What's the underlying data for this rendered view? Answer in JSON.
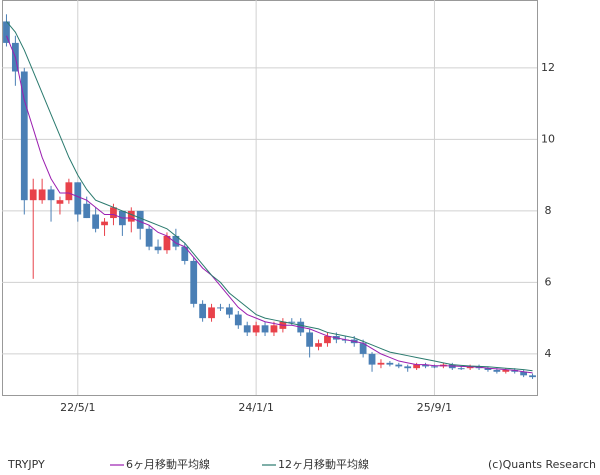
{
  "chart_data": {
    "type": "candlestick",
    "title": "TRYJPY",
    "credit": "(c)Quants Research",
    "categories": [
      null,
      null,
      null,
      null,
      null,
      null,
      null,
      null,
      "22/5/1",
      null,
      null,
      null,
      null,
      null,
      null,
      null,
      null,
      null,
      null,
      null,
      null,
      null,
      null,
      null,
      null,
      null,
      null,
      null,
      "24/1/1",
      null,
      null,
      null,
      null,
      null,
      null,
      null,
      null,
      null,
      null,
      null,
      null,
      null,
      null,
      null,
      null,
      null,
      null,
      null,
      "25/9/1",
      null,
      null,
      null,
      null,
      null,
      null,
      null,
      null,
      null,
      null,
      null
    ],
    "up_color": "#e8414a",
    "down_color": "#4a7fb5",
    "open": [
      13.3,
      12.7,
      11.9,
      8.3,
      8.3,
      8.6,
      8.2,
      8.3,
      8.8,
      8.2,
      7.9,
      7.6,
      7.8,
      8.0,
      7.7,
      8.0,
      7.5,
      7.0,
      6.9,
      7.3,
      7.0,
      6.6,
      5.4,
      5.0,
      5.3,
      5.3,
      5.1,
      4.8,
      4.6,
      4.8,
      4.6,
      4.7,
      4.9,
      4.9,
      4.6,
      4.2,
      4.3,
      4.5,
      4.4,
      4.4,
      4.3,
      4.0,
      3.7,
      3.75,
      3.7,
      3.65,
      3.6,
      3.7,
      3.65,
      3.65,
      3.7,
      3.6,
      3.6,
      3.65,
      3.6,
      3.55,
      3.5,
      3.55,
      3.5,
      3.4
    ],
    "high": [
      13.5,
      12.9,
      12.0,
      8.9,
      8.9,
      8.7,
      8.4,
      8.9,
      8.8,
      8.4,
      8.1,
      7.8,
      8.2,
      8.0,
      8.1,
      8.0,
      7.6,
      7.2,
      7.4,
      7.5,
      7.1,
      6.7,
      5.5,
      5.4,
      5.4,
      5.4,
      5.2,
      4.9,
      4.9,
      4.9,
      4.9,
      5.0,
      5.0,
      5.0,
      4.7,
      4.4,
      4.6,
      4.6,
      4.5,
      4.5,
      4.4,
      4.05,
      3.85,
      3.8,
      3.75,
      3.7,
      3.75,
      3.75,
      3.7,
      3.75,
      3.75,
      3.65,
      3.7,
      3.7,
      3.65,
      3.6,
      3.6,
      3.6,
      3.55,
      3.45
    ],
    "low": [
      12.6,
      11.5,
      7.9,
      6.1,
      8.2,
      7.7,
      7.9,
      8.2,
      7.7,
      7.8,
      7.4,
      7.3,
      7.6,
      7.3,
      7.4,
      7.2,
      6.9,
      6.8,
      6.8,
      6.9,
      6.5,
      5.3,
      4.9,
      4.9,
      5.2,
      5.0,
      4.7,
      4.5,
      4.5,
      4.5,
      4.5,
      4.6,
      4.8,
      4.5,
      3.9,
      4.1,
      4.2,
      4.3,
      4.3,
      4.2,
      3.9,
      3.5,
      3.6,
      3.65,
      3.6,
      3.5,
      3.55,
      3.6,
      3.6,
      3.6,
      3.55,
      3.55,
      3.55,
      3.55,
      3.5,
      3.45,
      3.45,
      3.45,
      3.35,
      3.3
    ],
    "close": [
      12.7,
      11.9,
      8.3,
      8.6,
      8.6,
      8.3,
      8.3,
      8.8,
      7.9,
      7.8,
      7.5,
      7.7,
      8.1,
      7.6,
      8.0,
      7.5,
      7.0,
      6.9,
      7.3,
      7.0,
      6.6,
      5.4,
      5.0,
      5.3,
      5.3,
      5.1,
      4.8,
      4.6,
      4.8,
      4.6,
      4.8,
      4.9,
      4.9,
      4.6,
      4.2,
      4.3,
      4.5,
      4.4,
      4.4,
      4.3,
      4.0,
      3.7,
      3.75,
      3.7,
      3.65,
      3.6,
      3.7,
      3.65,
      3.65,
      3.7,
      3.6,
      3.6,
      3.65,
      3.6,
      3.55,
      3.5,
      3.55,
      3.5,
      3.4,
      3.35
    ],
    "series": [
      {
        "name": "6ヶ月移動平均線",
        "color": "#9b1fb0",
        "values": [
          12.9,
          12.3,
          11.1,
          10.3,
          9.5,
          8.9,
          8.5,
          8.5,
          8.4,
          8.3,
          8.1,
          7.9,
          7.9,
          7.8,
          7.8,
          7.7,
          7.6,
          7.4,
          7.3,
          7.1,
          7.0,
          6.7,
          6.4,
          6.2,
          5.9,
          5.6,
          5.3,
          5.1,
          5.0,
          4.9,
          4.85,
          4.8,
          4.8,
          4.75,
          4.7,
          4.6,
          4.5,
          4.45,
          4.4,
          4.35,
          4.3,
          4.15,
          4.0,
          3.9,
          3.8,
          3.75,
          3.7,
          3.7,
          3.67,
          3.67,
          3.66,
          3.65,
          3.64,
          3.63,
          3.6,
          3.58,
          3.56,
          3.54,
          3.5,
          3.47
        ]
      },
      {
        "name": "12ヶ月移動平均線",
        "color": "#2a7a6e",
        "values": [
          13.3,
          13.0,
          12.5,
          11.9,
          11.3,
          10.7,
          10.1,
          9.5,
          9.0,
          8.6,
          8.3,
          8.2,
          8.1,
          8.0,
          7.9,
          7.8,
          7.7,
          7.6,
          7.5,
          7.3,
          7.1,
          6.8,
          6.5,
          6.2,
          6.0,
          5.7,
          5.5,
          5.3,
          5.1,
          5.0,
          4.95,
          4.9,
          4.85,
          4.8,
          4.75,
          4.7,
          4.6,
          4.55,
          4.5,
          4.45,
          4.35,
          4.25,
          4.15,
          4.05,
          4.0,
          3.95,
          3.9,
          3.85,
          3.8,
          3.75,
          3.7,
          3.68,
          3.66,
          3.65,
          3.64,
          3.62,
          3.6,
          3.58,
          3.56,
          3.53
        ]
      }
    ],
    "ylim": [
      2.85,
      13.9
    ],
    "yticks": [
      4,
      6,
      8,
      10,
      12
    ],
    "grid": true
  }
}
